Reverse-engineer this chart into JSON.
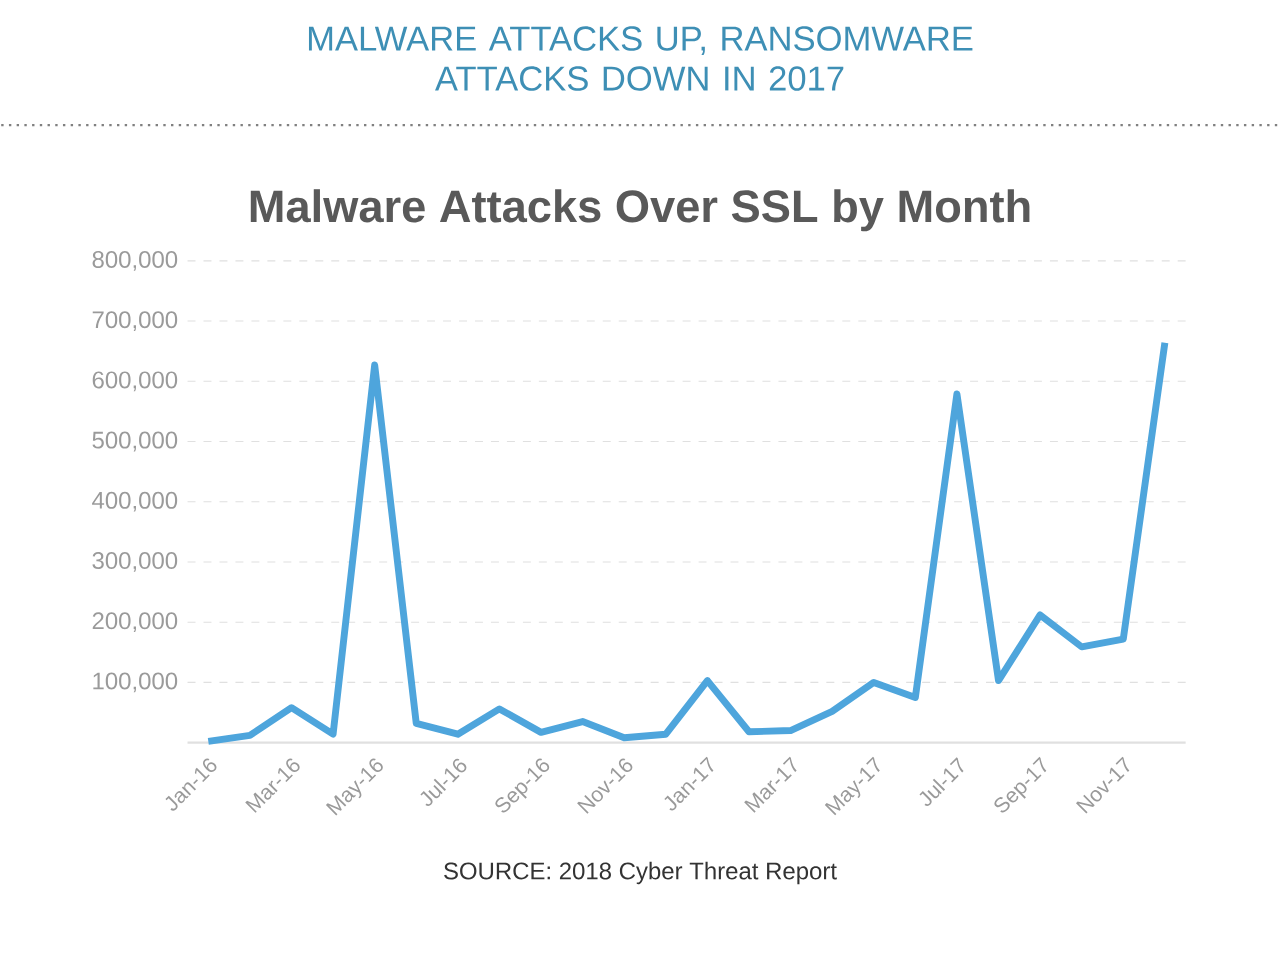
{
  "chart_data": {
    "type": "line",
    "title": "MALWARE ATTACKS UP, RANSOMWARE ATTACKS DOWN IN 2017",
    "subtitle": "Malware Attacks Over SSL by Month",
    "categories": [
      "Jan-16",
      null,
      "Mar-16",
      null,
      "May-16",
      null,
      "Jul-16",
      null,
      "Sep-16",
      null,
      "Nov-16",
      null,
      "Jan-17",
      null,
      "Mar-17",
      null,
      "May-17",
      null,
      "Jul-17",
      null,
      "Sep-17",
      null,
      "Nov-17",
      null
    ],
    "values": [
      2000,
      12000,
      58000,
      14000,
      627000,
      32000,
      14000,
      56000,
      17000,
      35000,
      8000,
      14000,
      103000,
      18000,
      20000,
      52000,
      100000,
      75000,
      579000,
      103000,
      212000,
      159000,
      172000,
      664000
    ],
    "color": "#4ea5dc",
    "ylim": [
      0,
      800000
    ],
    "yticks": [
      {
        "value": 100000,
        "label": "100,000"
      },
      {
        "value": 200000,
        "label": "200,000"
      },
      {
        "value": 300000,
        "label": "300,000"
      },
      {
        "value": 400000,
        "label": "400,000"
      },
      {
        "value": 500000,
        "label": "500,000"
      },
      {
        "value": 600000,
        "label": "600,000"
      },
      {
        "value": 700000,
        "label": "700,000"
      },
      {
        "value": 800000,
        "label": "800,000"
      }
    ],
    "grid": "y",
    "annotations": [
      "SOURCE: 2018 Cyber Threat Report"
    ]
  }
}
